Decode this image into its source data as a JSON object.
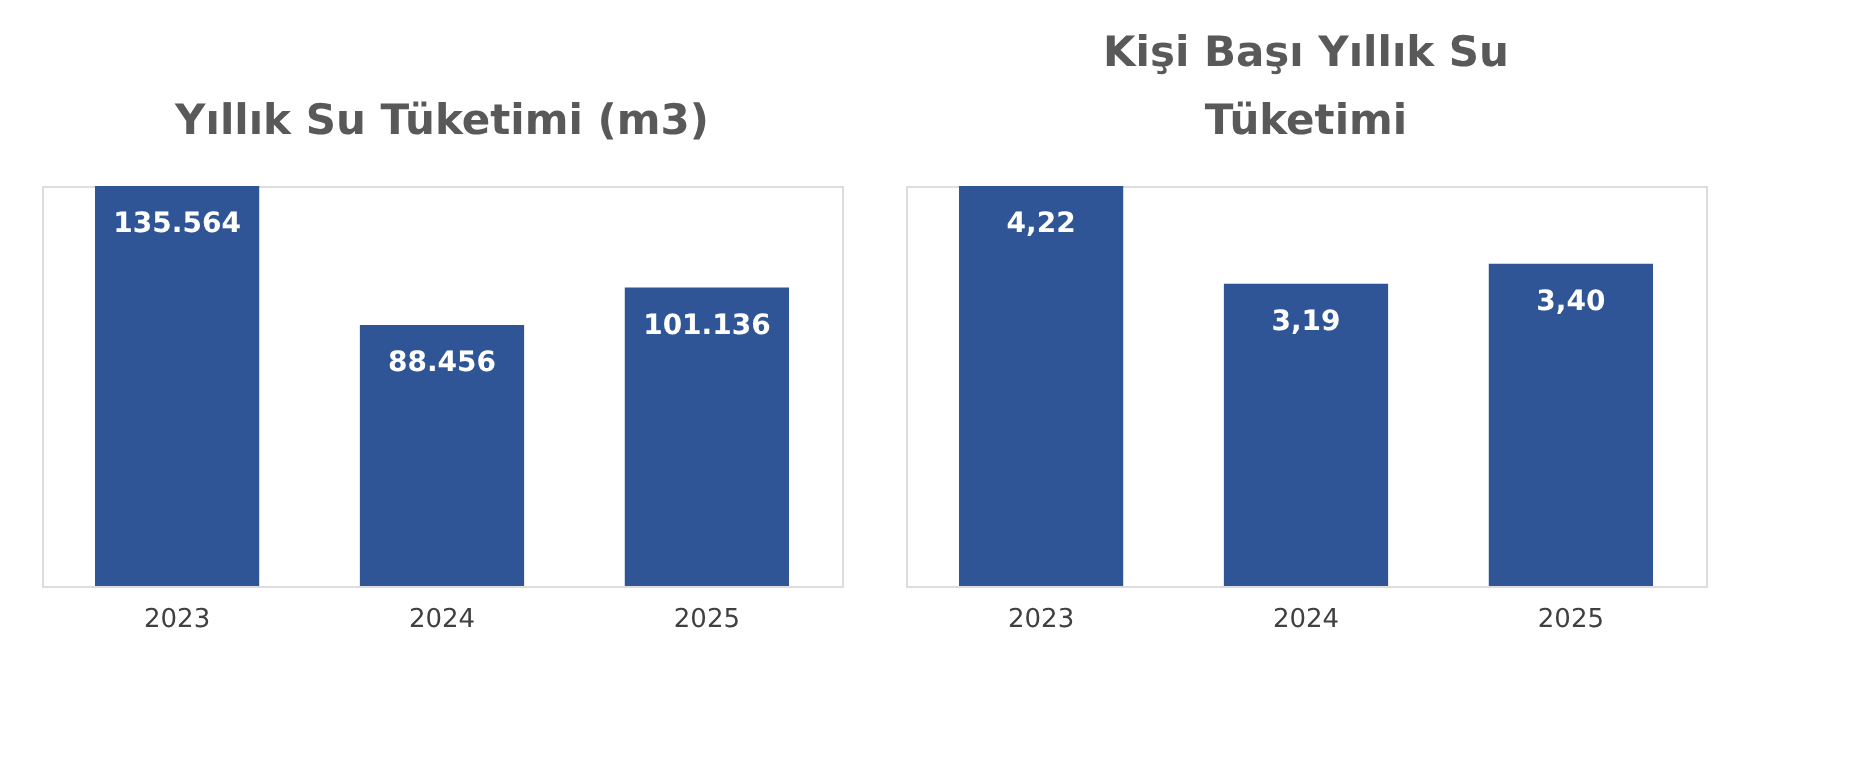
{
  "chart_data": [
    {
      "type": "bar",
      "title": "Yıllık Su Tüketimi (m3)",
      "categories": [
        "2023",
        "2024",
        "2025"
      ],
      "values": [
        135564,
        88456,
        101136
      ],
      "value_labels": [
        "135.564",
        "88.456",
        "101.136"
      ],
      "color": "#2f5597"
    },
    {
      "type": "bar",
      "title": "Kişi Başı Yıllık Su Tüketimi",
      "categories": [
        "2023",
        "2024",
        "2025"
      ],
      "values": [
        4.22,
        3.19,
        3.4
      ],
      "value_labels": [
        "4,22",
        "3,19",
        "3,40"
      ],
      "color": "#2f5597"
    }
  ]
}
